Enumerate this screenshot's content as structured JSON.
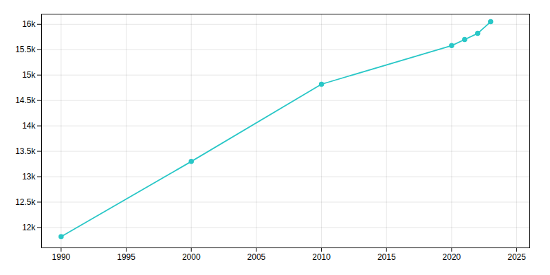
{
  "chart_data": {
    "type": "line",
    "x": [
      1990,
      2000,
      2010,
      2020,
      2021,
      2022,
      2023
    ],
    "values": [
      11820,
      13300,
      14820,
      15580,
      15700,
      15820,
      16050
    ],
    "color": "#29c7c7",
    "marker": "circle",
    "xlim": [
      1988.5,
      2026
    ],
    "ylim": [
      11600,
      16200
    ],
    "xticks": [
      1990,
      1995,
      2000,
      2005,
      2010,
      2015,
      2020,
      2025
    ],
    "yticks": [
      {
        "value": 12000,
        "label": "12k"
      },
      {
        "value": 12500,
        "label": "12.5k"
      },
      {
        "value": 13000,
        "label": "13k"
      },
      {
        "value": 13500,
        "label": "13.5k"
      },
      {
        "value": 14000,
        "label": "14k"
      },
      {
        "value": 14500,
        "label": "14.5k"
      },
      {
        "value": 15000,
        "label": "15k"
      },
      {
        "value": 15500,
        "label": "15.5k"
      },
      {
        "value": 16000,
        "label": "16k"
      }
    ],
    "grid": true
  }
}
